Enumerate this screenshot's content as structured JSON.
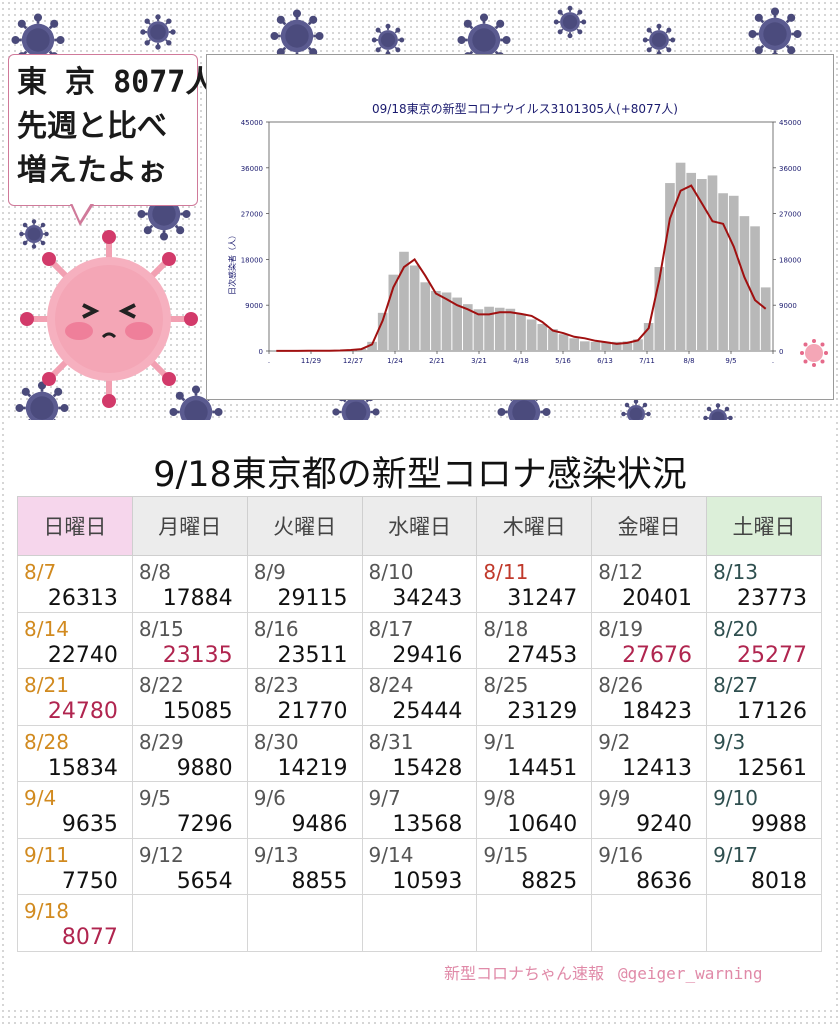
{
  "speech": {
    "lines": [
      "東 京 8077人",
      "先週と比べ",
      "増えたよぉ"
    ]
  },
  "colors": {
    "bar": "#b8b8b8",
    "line": "#a01010",
    "title": "#1a1a6e",
    "holiday": "#c0392b",
    "sunday": "#d18a1f",
    "highlight": "#b0254f"
  },
  "chart_data": {
    "type": "bar",
    "title": "09/18東京の新型コロナウイルス3101305人(+8077人)",
    "ylabel": "日次感染者（人）",
    "ylim": [
      0,
      45000
    ],
    "yticks": [
      0,
      9000,
      18000,
      27000,
      36000,
      45000
    ],
    "xtick_labels": [
      ".",
      "11/29",
      "12/27",
      "1/24",
      "2/21",
      "3/21",
      "4/18",
      "5/16",
      "6/13",
      "7/11",
      "8/8",
      "9/5",
      "."
    ],
    "series": [
      {
        "type": "bar",
        "x": [
          "10/31",
          "11/7",
          "11/14",
          "11/21",
          "11/28",
          "12/5",
          "12/12",
          "12/19",
          "12/26",
          "1/2",
          "1/9",
          "1/16",
          "1/23",
          "1/30",
          "2/6",
          "2/13",
          "2/20",
          "2/27",
          "3/6",
          "3/13",
          "3/20",
          "3/27",
          "4/3",
          "4/10",
          "4/17",
          "4/24",
          "5/1",
          "5/8",
          "5/15",
          "5/22",
          "5/29",
          "6/5",
          "6/12",
          "6/19",
          "6/26",
          "7/3",
          "7/10",
          "7/17",
          "7/24",
          "7/31",
          "8/7",
          "8/14",
          "8/21",
          "8/28",
          "9/4",
          "9/11",
          "9/18"
        ],
        "values": [
          20,
          25,
          25,
          30,
          40,
          60,
          110,
          230,
          450,
          1800,
          7500,
          15000,
          19500,
          16800,
          13500,
          11800,
          11500,
          10500,
          9200,
          8200,
          8700,
          8500,
          8300,
          7300,
          6200,
          5300,
          4300,
          3300,
          2500,
          1900,
          1800,
          1800,
          1800,
          1900,
          2300,
          5500,
          16500,
          33000,
          37000,
          35000,
          33800,
          34500,
          31000,
          30500,
          26500,
          24500,
          12500
        ]
      },
      {
        "type": "line",
        "x": [
          "10/31",
          "11/7",
          "11/14",
          "11/21",
          "11/28",
          "12/5",
          "12/12",
          "12/19",
          "12/26",
          "1/2",
          "1/9",
          "1/16",
          "1/23",
          "1/30",
          "2/6",
          "2/13",
          "2/20",
          "2/27",
          "3/6",
          "3/13",
          "3/20",
          "3/27",
          "4/3",
          "4/10",
          "4/17",
          "4/24",
          "5/1",
          "5/8",
          "5/15",
          "5/22",
          "5/29",
          "6/5",
          "6/12",
          "6/19",
          "6/26",
          "7/3",
          "7/10",
          "7/17",
          "7/24",
          "7/31",
          "8/7",
          "8/14",
          "8/21",
          "8/28",
          "9/4",
          "9/11",
          "9/18"
        ],
        "values": [
          20,
          25,
          25,
          30,
          40,
          60,
          100,
          200,
          380,
          1300,
          6000,
          12500,
          16500,
          18000,
          14800,
          11300,
          10200,
          9000,
          8200,
          7200,
          7200,
          7600,
          7600,
          7300,
          6900,
          5700,
          4000,
          3500,
          2800,
          2500,
          2000,
          1700,
          1400,
          1600,
          2100,
          4500,
          14000,
          26000,
          31500,
          32500,
          29000,
          25500,
          25000,
          20500,
          14500,
          10000,
          8300
        ]
      }
    ]
  },
  "table": {
    "title": "9/18東京都の新型コロナ感染状況",
    "headers": [
      "日曜日",
      "月曜日",
      "火曜日",
      "水曜日",
      "木曜日",
      "金曜日",
      "土曜日"
    ],
    "rows": [
      [
        {
          "d": "8/7",
          "v": "26313"
        },
        {
          "d": "8/8",
          "v": "17884"
        },
        {
          "d": "8/9",
          "v": "29115"
        },
        {
          "d": "8/10",
          "v": "34243"
        },
        {
          "d": "8/11",
          "v": "31247"
        },
        {
          "d": "8/12",
          "v": "20401"
        },
        {
          "d": "8/13",
          "v": "23773"
        }
      ],
      [
        {
          "d": "8/14",
          "v": "22740"
        },
        {
          "d": "8/15",
          "v": "23135"
        },
        {
          "d": "8/16",
          "v": "23511"
        },
        {
          "d": "8/17",
          "v": "29416"
        },
        {
          "d": "8/18",
          "v": "27453"
        },
        {
          "d": "8/19",
          "v": "27676"
        },
        {
          "d": "8/20",
          "v": "25277"
        }
      ],
      [
        {
          "d": "8/21",
          "v": "24780"
        },
        {
          "d": "8/22",
          "v": "15085"
        },
        {
          "d": "8/23",
          "v": "21770"
        },
        {
          "d": "8/24",
          "v": "25444"
        },
        {
          "d": "8/25",
          "v": "23129"
        },
        {
          "d": "8/26",
          "v": "18423"
        },
        {
          "d": "8/27",
          "v": "17126"
        }
      ],
      [
        {
          "d": "8/28",
          "v": "15834"
        },
        {
          "d": "8/29",
          "v": "9880"
        },
        {
          "d": "8/30",
          "v": "14219"
        },
        {
          "d": "8/31",
          "v": "15428"
        },
        {
          "d": "9/1",
          "v": "14451"
        },
        {
          "d": "9/2",
          "v": "12413"
        },
        {
          "d": "9/3",
          "v": "12561"
        }
      ],
      [
        {
          "d": "9/4",
          "v": "9635"
        },
        {
          "d": "9/5",
          "v": "7296"
        },
        {
          "d": "9/6",
          "v": "9486"
        },
        {
          "d": "9/7",
          "v": "13568"
        },
        {
          "d": "9/8",
          "v": "10640"
        },
        {
          "d": "9/9",
          "v": "9240"
        },
        {
          "d": "9/10",
          "v": "9988"
        }
      ],
      [
        {
          "d": "9/11",
          "v": "7750"
        },
        {
          "d": "9/12",
          "v": "5654"
        },
        {
          "d": "9/13",
          "v": "8855"
        },
        {
          "d": "9/14",
          "v": "10593"
        },
        {
          "d": "9/15",
          "v": "8825"
        },
        {
          "d": "9/16",
          "v": "8636"
        },
        {
          "d": "9/17",
          "v": "8018"
        }
      ],
      [
        {
          "d": "9/18",
          "v": "8077"
        },
        {
          "d": "",
          "v": ""
        },
        {
          "d": "",
          "v": ""
        },
        {
          "d": "",
          "v": ""
        },
        {
          "d": "",
          "v": ""
        },
        {
          "d": "",
          "v": ""
        },
        {
          "d": "",
          "v": ""
        }
      ]
    ],
    "highlight_values": [
      "23135",
      "27676",
      "25277",
      "24780",
      "8077"
    ],
    "holiday_dates": [
      "8/11"
    ]
  },
  "footer": {
    "left": "新型コロナちゃん速報",
    "right": "@geiger_warning"
  }
}
